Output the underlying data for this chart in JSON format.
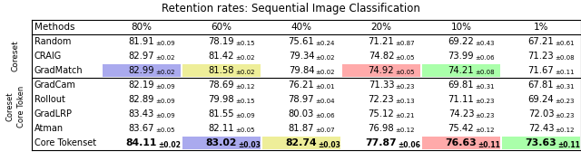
{
  "title": "Retention rates: Sequential Image Classification",
  "columns": [
    "Methods",
    "80%",
    "60%",
    "40%",
    "20%",
    "10%",
    "1%"
  ],
  "rows": [
    {
      "method": "Random",
      "group": "coreset",
      "values": [
        "81.91",
        "78.19",
        "75.61",
        "71.21",
        "69.22",
        "67.21"
      ],
      "errors": [
        "0.09",
        "0.15",
        "0.24",
        "0.87",
        "0.43",
        "0.61"
      ],
      "highlights": [
        null,
        null,
        null,
        null,
        null,
        null
      ],
      "bold": false
    },
    {
      "method": "CRAIG",
      "group": "coreset",
      "values": [
        "82.97",
        "81.42",
        "79.34",
        "74.82",
        "73.99",
        "71.23"
      ],
      "errors": [
        "0.02",
        "0.02",
        "0.02",
        "0.05",
        "0.06",
        "0.08"
      ],
      "highlights": [
        null,
        null,
        null,
        null,
        null,
        null
      ],
      "bold": false
    },
    {
      "method": "GradMatch",
      "group": "coreset",
      "values": [
        "82.99",
        "81.58",
        "79.84",
        "74.92",
        "74.21",
        "71.67"
      ],
      "errors": [
        "0.02",
        "0.02",
        "0.02",
        "0.05",
        "0.08",
        "0.11"
      ],
      "highlights": [
        "#aaaaee",
        "#eeee99",
        null,
        "#ffaaaa",
        "#aaffaa",
        null
      ],
      "bold": false
    },
    {
      "method": "GradCam",
      "group": "token",
      "values": [
        "82.19",
        "78.69",
        "76.21",
        "71.33",
        "69.81",
        "67.81"
      ],
      "errors": [
        "0.09",
        "0.12",
        "0.01",
        "0.23",
        "0.31",
        "0.31"
      ],
      "highlights": [
        null,
        null,
        null,
        null,
        null,
        null
      ],
      "bold": false
    },
    {
      "method": "Rollout",
      "group": "token",
      "values": [
        "82.89",
        "79.98",
        "78.97",
        "72.23",
        "71.11",
        "69.24"
      ],
      "errors": [
        "0.09",
        "0.15",
        "0.04",
        "0.13",
        "0.23",
        "0.23"
      ],
      "highlights": [
        null,
        null,
        null,
        null,
        null,
        null
      ],
      "bold": false
    },
    {
      "method": "GradLRP",
      "group": "token",
      "values": [
        "83.43",
        "81.55",
        "80.03",
        "75.12",
        "74.23",
        "72.03"
      ],
      "errors": [
        "0.09",
        "0.09",
        "0.06",
        "0.21",
        "0.23",
        "0.23"
      ],
      "highlights": [
        null,
        null,
        null,
        null,
        null,
        null
      ],
      "bold": false
    },
    {
      "method": "Atman",
      "group": "token",
      "values": [
        "83.67",
        "82.11",
        "81.87",
        "76.98",
        "75.42",
        "72.43"
      ],
      "errors": [
        "0.05",
        "0.05",
        "0.07",
        "0.12",
        "0.12",
        "0.12"
      ],
      "highlights": [
        null,
        null,
        null,
        null,
        null,
        null
      ],
      "bold": false
    },
    {
      "method": "Core Tokenset",
      "group": "last",
      "values": [
        "84.11",
        "83.02",
        "82.74",
        "77.87",
        "76.63",
        "73.63"
      ],
      "errors": [
        "0.02",
        "0.03",
        "0.03",
        "0.06",
        "0.11",
        "0.11"
      ],
      "highlights": [
        null,
        "#aaaaee",
        "#eeee99",
        null,
        "#ffaaaa",
        "#aaffaa"
      ],
      "bold": true
    }
  ],
  "bg_color": "#ffffff",
  "text_color": "#000000"
}
